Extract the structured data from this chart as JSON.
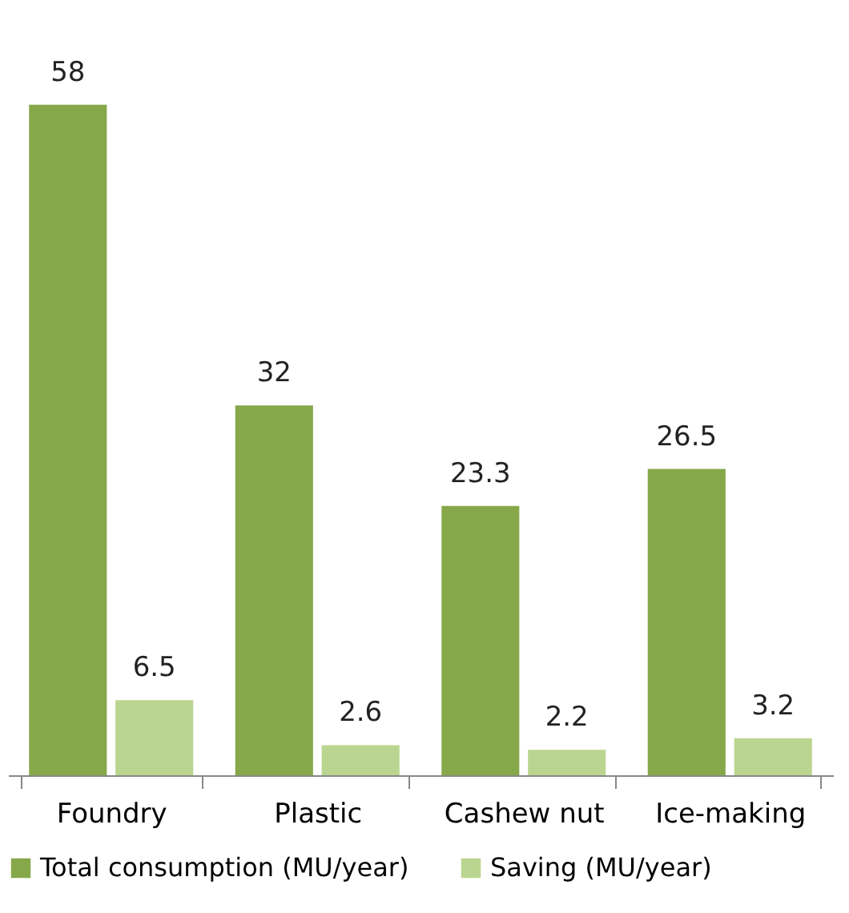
{
  "chart_data": {
    "type": "bar",
    "categories": [
      "Foundry",
      "Plastic",
      "Cashew nut",
      "Ice-making"
    ],
    "series": [
      {
        "name": "Total consumption (MU/year)",
        "color": "#86a84a",
        "values": [
          58,
          32,
          23.3,
          26.5
        ]
      },
      {
        "name": "Saving (MU/year)",
        "color": "#bad590",
        "values": [
          6.5,
          2.6,
          2.2,
          3.2
        ]
      }
    ],
    "data_labels": true,
    "legend": "bottom",
    "grid": false,
    "tick_labels": "x"
  }
}
